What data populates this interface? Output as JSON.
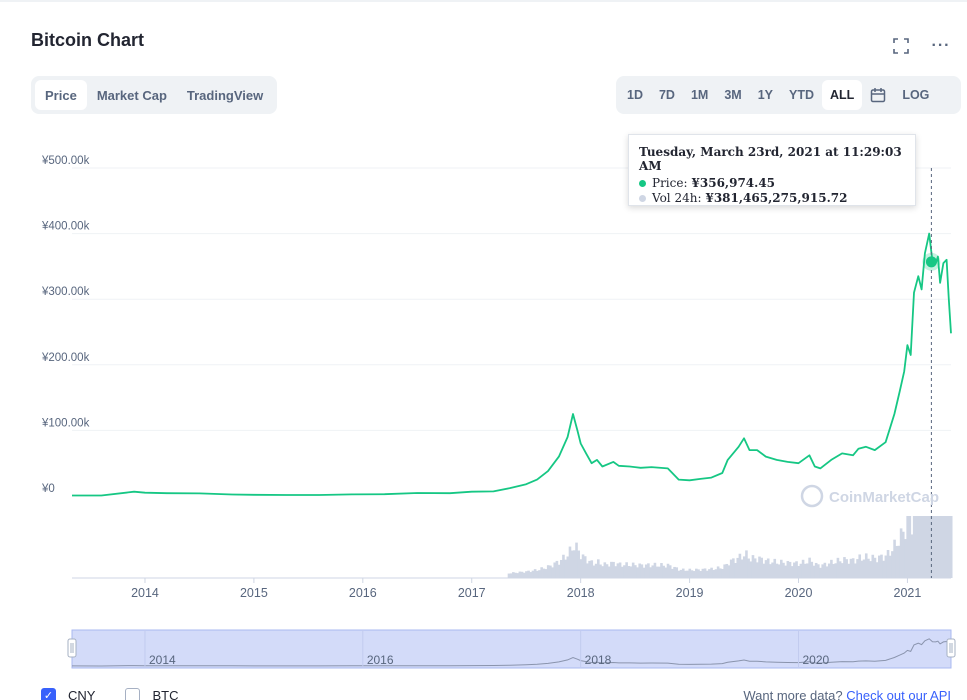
{
  "header": {
    "title": "Bitcoin Chart",
    "fullscreen_icon": "fullscreen-icon",
    "more_icon": "more-icon",
    "more_glyph": "···"
  },
  "tabs": [
    {
      "label": "Price",
      "active": true
    },
    {
      "label": "Market Cap",
      "active": false
    },
    {
      "label": "TradingView",
      "active": false
    }
  ],
  "ranges": [
    {
      "label": "1D",
      "active": false
    },
    {
      "label": "7D",
      "active": false
    },
    {
      "label": "1M",
      "active": false
    },
    {
      "label": "3M",
      "active": false
    },
    {
      "label": "1Y",
      "active": false
    },
    {
      "label": "YTD",
      "active": false
    },
    {
      "label": "ALL",
      "active": true
    },
    {
      "label": "",
      "icon": "calendar-icon",
      "active": false
    },
    {
      "label": "LOG",
      "active": false
    }
  ],
  "tooltip": {
    "date": "Tuesday, March 23rd, 2021 at 11:29:03 AM",
    "price_label": "Price:",
    "price_value": "¥356,974.45",
    "vol_label": "Vol 24h:",
    "vol_value": "¥381,465,275,915.72",
    "price_color": "#16c784",
    "vol_color": "#cfd6e4"
  },
  "watermark": "CoinMarketCap",
  "chart_data": {
    "type": "line",
    "title": "Bitcoin Chart",
    "series": [
      {
        "name": "Price",
        "color": "#16c784",
        "x": [
          2013.33,
          2013.6,
          2013.9,
          2014.0,
          2014.2,
          2014.5,
          2014.8,
          2015.0,
          2015.3,
          2015.6,
          2015.9,
          2016.2,
          2016.5,
          2016.8,
          2017.0,
          2017.2,
          2017.35,
          2017.5,
          2017.6,
          2017.7,
          2017.8,
          2017.88,
          2017.93,
          2017.97,
          2018.0,
          2018.05,
          2018.1,
          2018.15,
          2018.2,
          2018.3,
          2018.35,
          2018.45,
          2018.55,
          2018.65,
          2018.8,
          2018.9,
          2019.0,
          2019.1,
          2019.2,
          2019.3,
          2019.35,
          2019.45,
          2019.5,
          2019.55,
          2019.62,
          2019.7,
          2019.8,
          2019.9,
          2020.0,
          2020.1,
          2020.15,
          2020.2,
          2020.3,
          2020.4,
          2020.5,
          2020.55,
          2020.62,
          2020.7,
          2020.8,
          2020.88,
          2020.93,
          2020.97,
          2021.0,
          2021.03,
          2021.06,
          2021.1,
          2021.13,
          2021.16,
          2021.2,
          2021.23,
          2021.26,
          2021.28,
          2021.3,
          2021.33,
          2021.36,
          2021.38,
          2021.4
        ],
        "values": [
          800,
          700,
          6500,
          5000,
          4200,
          3900,
          2300,
          1800,
          1500,
          1600,
          2500,
          2700,
          4500,
          4200,
          6500,
          7000,
          12000,
          18000,
          25000,
          38000,
          60000,
          90000,
          125000,
          100000,
          80000,
          65000,
          50000,
          55000,
          45000,
          52000,
          46000,
          45000,
          43000,
          44000,
          42000,
          25000,
          24000,
          26000,
          28000,
          35000,
          55000,
          75000,
          88000,
          70000,
          70000,
          60000,
          55000,
          52000,
          50000,
          62000,
          45000,
          42000,
          55000,
          65000,
          62000,
          72000,
          75000,
          70000,
          82000,
          125000,
          160000,
          190000,
          230000,
          215000,
          310000,
          335000,
          315000,
          370000,
          400000,
          357000,
          355000,
          365000,
          325000,
          355000,
          360000,
          300000,
          248000
        ]
      }
    ],
    "volume": {
      "name": "Vol 24h",
      "color": "#cfd6e4",
      "note": "relative volume bars shown at bottom"
    },
    "y_ticks": [
      "¥0",
      "¥100.00k",
      "¥200.00k",
      "¥300.00k",
      "¥400.00k",
      "¥500.00k"
    ],
    "y_tick_values": [
      0,
      100000,
      200000,
      300000,
      400000,
      500000
    ],
    "x_ticks": [
      "2014",
      "2015",
      "2016",
      "2017",
      "2018",
      "2019",
      "2020",
      "2021"
    ],
    "x_tick_values": [
      2014,
      2015,
      2016,
      2017,
      2018,
      2019,
      2020,
      2021
    ],
    "xlim": [
      2013.33,
      2021.4
    ],
    "ylim": [
      0,
      500000
    ],
    "hover": {
      "x": 2021.22,
      "value": 356974.45
    },
    "navigator_ticks": [
      "2014",
      "2016",
      "2018",
      "2020"
    ],
    "navigator_tick_values": [
      2014,
      2016,
      2018,
      2020
    ],
    "grid": true
  },
  "legend": [
    {
      "label": "CNY",
      "checked": true
    },
    {
      "label": "BTC",
      "checked": false
    }
  ],
  "footer": {
    "api_prefix": "Want more data?",
    "api_link": "Check out our API"
  }
}
